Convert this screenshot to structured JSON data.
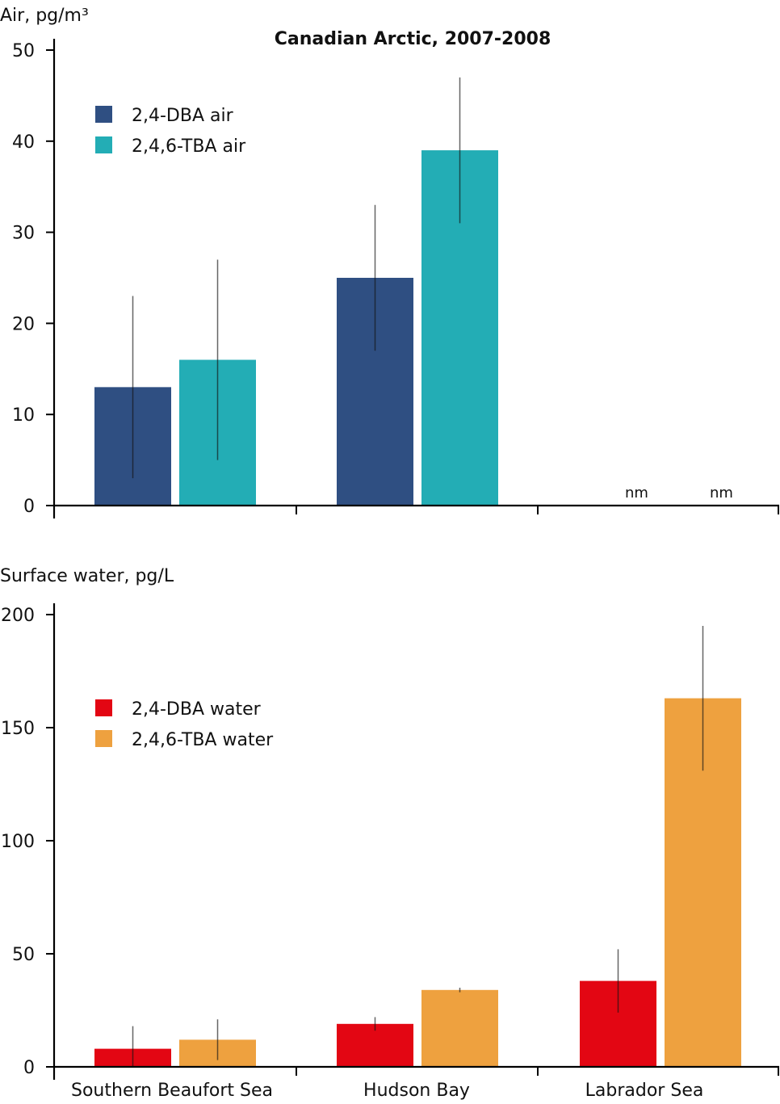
{
  "chart_data": [
    {
      "type": "bar",
      "title": "Canadian Arctic, 2007-2008",
      "ylabel": "Air, pg/m³",
      "xlabel": "",
      "categories": [
        "Southern Beaufort Sea",
        "Hudson Bay",
        "Labrador Sea"
      ],
      "ylim": [
        0,
        50
      ],
      "yticks": [
        0,
        10,
        20,
        30,
        40,
        50
      ],
      "grid": false,
      "legend_position": "top-left",
      "series": [
        {
          "name": "2,4-DBA air",
          "color": "#2f4f82",
          "values": [
            13,
            25,
            null
          ],
          "error_low": [
            3,
            17,
            null
          ],
          "error_high": [
            23,
            33,
            null
          ]
        },
        {
          "name": "2,4,6-TBA air",
          "color": "#23adb5",
          "values": [
            16,
            39,
            null
          ],
          "error_low": [
            5,
            31,
            null
          ],
          "error_high": [
            27,
            47,
            null
          ]
        }
      ],
      "annotations": [
        {
          "category": "Labrador Sea",
          "series": "2,4-DBA air",
          "text": "nm"
        },
        {
          "category": "Labrador Sea",
          "series": "2,4,6-TBA air",
          "text": "nm"
        }
      ],
      "show_category_labels": false
    },
    {
      "type": "bar",
      "title": "",
      "ylabel": "Surface water, pg/L",
      "xlabel": "",
      "categories": [
        "Southern Beaufort Sea",
        "Hudson Bay",
        "Labrador Sea"
      ],
      "ylim": [
        0,
        200
      ],
      "yticks": [
        0,
        50,
        100,
        150,
        200
      ],
      "grid": false,
      "legend_position": "top-left",
      "series": [
        {
          "name": "2,4-DBA water",
          "color": "#e30613",
          "values": [
            8,
            19,
            38
          ],
          "error_low": [
            0,
            16,
            24
          ],
          "error_high": [
            18,
            22,
            52
          ]
        },
        {
          "name": "2,4,6-TBA water",
          "color": "#eea13f",
          "values": [
            12,
            34,
            163
          ],
          "error_low": [
            3,
            33,
            131
          ],
          "error_high": [
            21,
            35,
            195
          ]
        }
      ],
      "annotations": [],
      "show_category_labels": true
    }
  ]
}
